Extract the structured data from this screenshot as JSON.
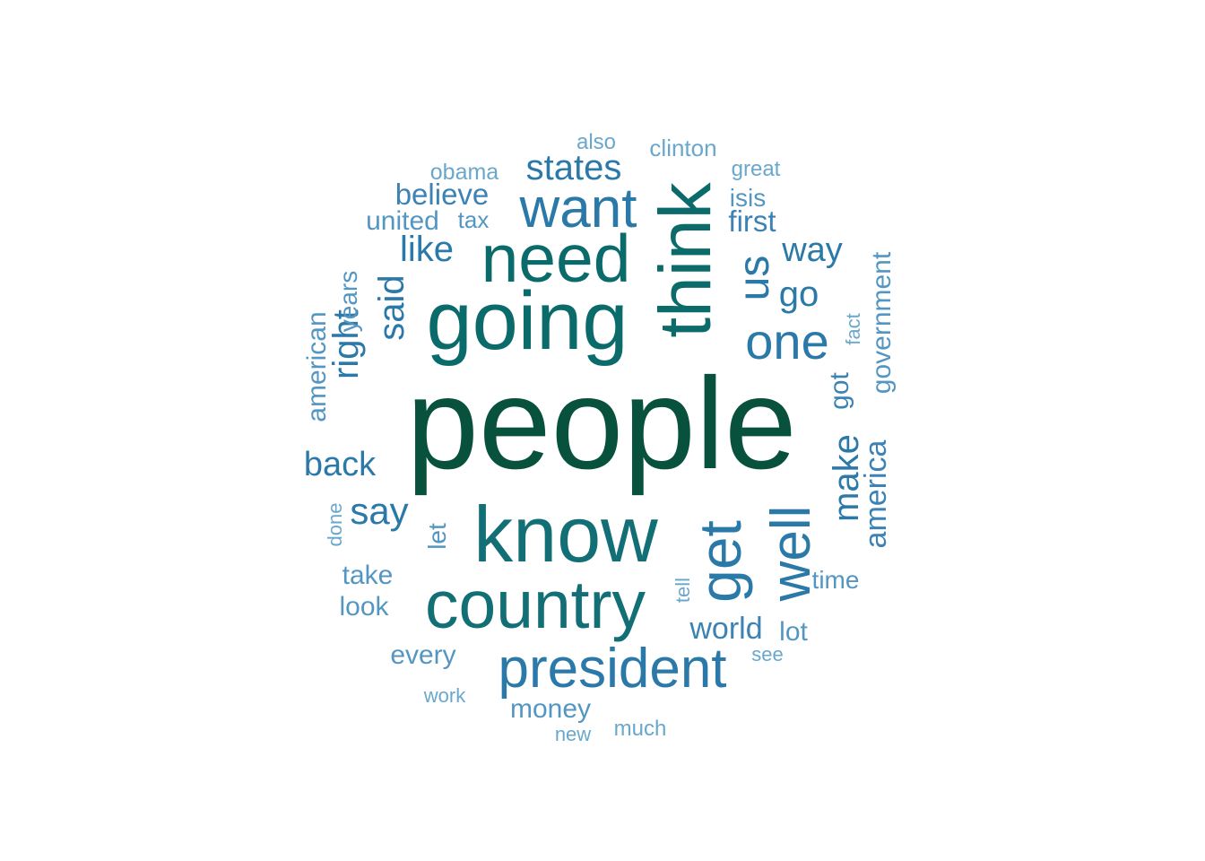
{
  "colors": {
    "background": "#ffffff",
    "darkest": "#08523d",
    "dark_teal": "#0b6b6b",
    "teal": "#126f76",
    "blue_dark": "#2b79a8",
    "blue": "#3c82b4",
    "blue_light": "#5496c2",
    "blue_lighter": "#6aa7cc"
  },
  "words": [
    {
      "text": "people",
      "color": "darkest"
    },
    {
      "text": "going",
      "color": "dark_teal"
    },
    {
      "text": "think",
      "color": "dark_teal"
    },
    {
      "text": "need",
      "color": "dark_teal"
    },
    {
      "text": "know",
      "color": "teal"
    },
    {
      "text": "country",
      "color": "teal"
    },
    {
      "text": "want",
      "color": "blue_dark"
    },
    {
      "text": "president",
      "color": "blue_dark"
    },
    {
      "text": "get",
      "color": "blue_dark"
    },
    {
      "text": "well",
      "color": "blue_dark"
    },
    {
      "text": "one",
      "color": "blue_dark"
    },
    {
      "text": "us",
      "color": "blue_dark"
    },
    {
      "text": "states",
      "color": "blue_dark"
    },
    {
      "text": "like",
      "color": "blue_dark"
    },
    {
      "text": "said",
      "color": "blue_dark"
    },
    {
      "text": "way",
      "color": "blue_dark"
    },
    {
      "text": "go",
      "color": "blue_dark"
    },
    {
      "text": "make",
      "color": "blue_dark"
    },
    {
      "text": "right",
      "color": "blue_dark"
    },
    {
      "text": "back",
      "color": "blue_dark"
    },
    {
      "text": "say",
      "color": "blue_dark"
    },
    {
      "text": "america",
      "color": "blue"
    },
    {
      "text": "world",
      "color": "blue"
    },
    {
      "text": "believe",
      "color": "blue"
    },
    {
      "text": "first",
      "color": "blue"
    },
    {
      "text": "got",
      "color": "blue"
    },
    {
      "text": "government",
      "color": "blue_light"
    },
    {
      "text": "american",
      "color": "blue_light"
    },
    {
      "text": "years",
      "color": "blue_light"
    },
    {
      "text": "united",
      "color": "blue_light"
    },
    {
      "text": "take",
      "color": "blue_light"
    },
    {
      "text": "look",
      "color": "blue_light"
    },
    {
      "text": "every",
      "color": "blue_light"
    },
    {
      "text": "money",
      "color": "blue_light"
    },
    {
      "text": "lot",
      "color": "blue_light"
    },
    {
      "text": "time",
      "color": "blue_light"
    },
    {
      "text": "isis",
      "color": "blue_light"
    },
    {
      "text": "let",
      "color": "blue_light"
    },
    {
      "text": "tax",
      "color": "blue_light"
    },
    {
      "text": "clinton",
      "color": "blue_lighter"
    },
    {
      "text": "also",
      "color": "blue_lighter"
    },
    {
      "text": "obama",
      "color": "blue_lighter"
    },
    {
      "text": "great",
      "color": "blue_lighter"
    },
    {
      "text": "fact",
      "color": "blue_lighter"
    },
    {
      "text": "done",
      "color": "blue_lighter"
    },
    {
      "text": "tell",
      "color": "blue_lighter"
    },
    {
      "text": "see",
      "color": "blue_lighter"
    },
    {
      "text": "work",
      "color": "blue_lighter"
    },
    {
      "text": "new",
      "color": "blue_lighter"
    },
    {
      "text": "much",
      "color": "blue_lighter"
    }
  ]
}
